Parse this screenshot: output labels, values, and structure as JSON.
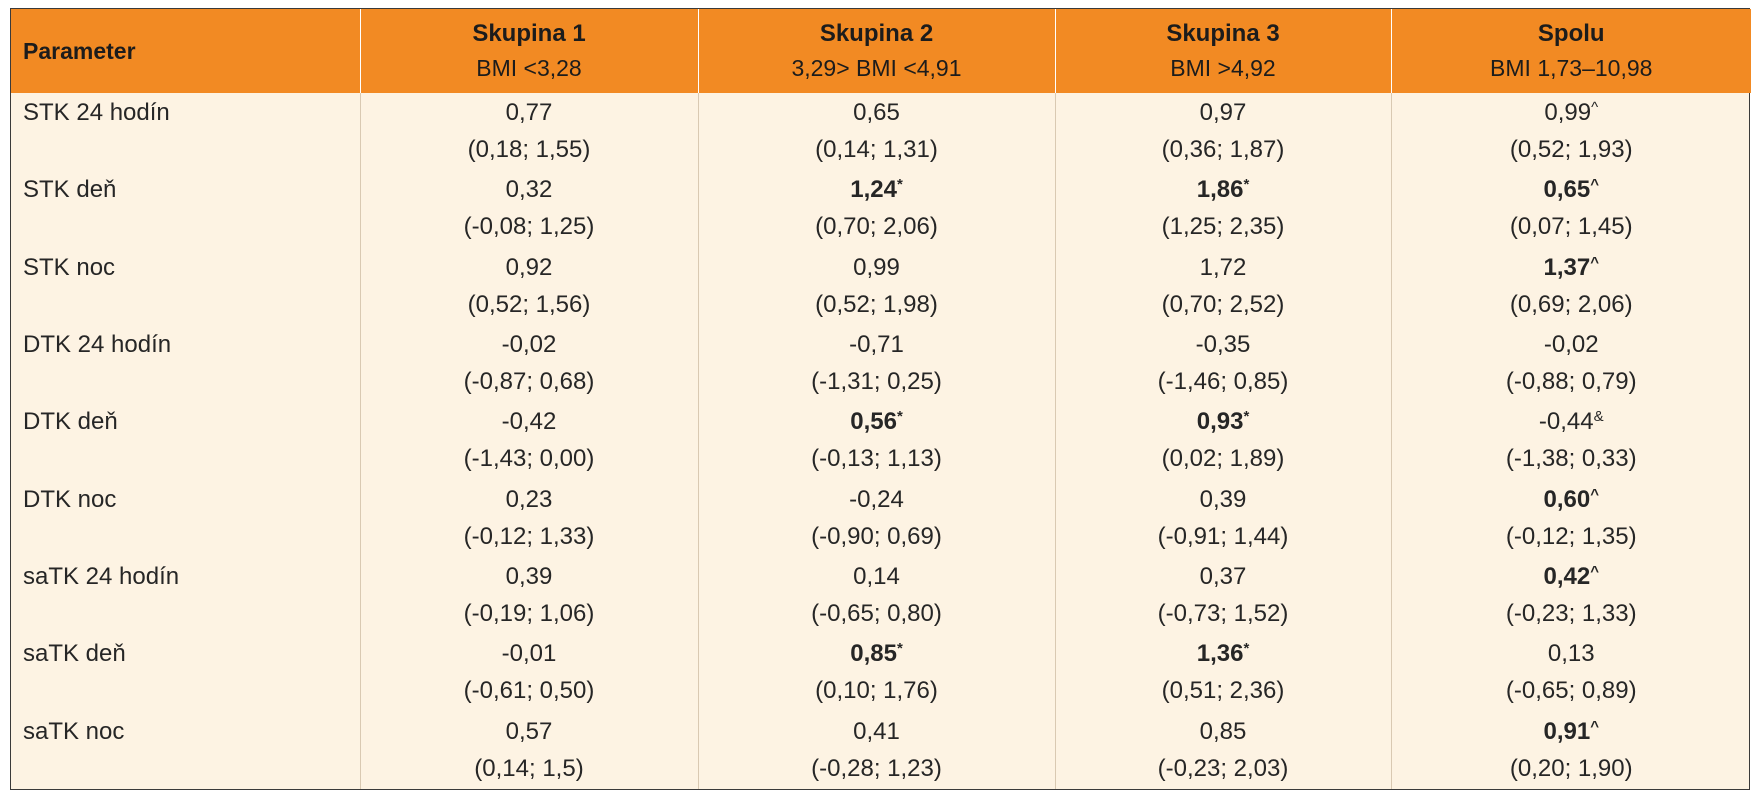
{
  "table": {
    "header": {
      "param": "Parameter",
      "groups": [
        {
          "title": "Skupina 1",
          "sub": "BMI <3,28"
        },
        {
          "title": "Skupina 2",
          "sub": "3,29> BMI <4,91"
        },
        {
          "title": "Skupina 3",
          "sub": "BMI >4,92"
        },
        {
          "title": "Spolu",
          "sub": "BMI 1,73–10,98"
        }
      ]
    },
    "rows": [
      {
        "label": "STK 24 hodín",
        "cells": [
          {
            "val": "0,77",
            "sup": "",
            "ci": "(0,18; 1,55)",
            "bold": false
          },
          {
            "val": "0,65",
            "sup": "",
            "ci": "(0,14; 1,31)",
            "bold": false
          },
          {
            "val": "0,97",
            "sup": "",
            "ci": "(0,36; 1,87)",
            "bold": false
          },
          {
            "val": "0,99",
            "sup": "^",
            "ci": "(0,52; 1,93)",
            "bold": false
          }
        ]
      },
      {
        "label": "STK deň",
        "cells": [
          {
            "val": "0,32",
            "sup": "",
            "ci": "(-0,08; 1,25)",
            "bold": false
          },
          {
            "val": "1,24",
            "sup": "*",
            "ci": "(0,70; 2,06)",
            "bold": true
          },
          {
            "val": "1,86",
            "sup": "*",
            "ci": "(1,25; 2,35)",
            "bold": true
          },
          {
            "val": "0,65",
            "sup": "^",
            "ci": "(0,07; 1,45)",
            "bold": true
          }
        ]
      },
      {
        "label": "STK noc",
        "cells": [
          {
            "val": "0,92",
            "sup": "",
            "ci": "(0,52; 1,56)",
            "bold": false
          },
          {
            "val": "0,99",
            "sup": "",
            "ci": "(0,52; 1,98)",
            "bold": false
          },
          {
            "val": "1,72",
            "sup": "",
            "ci": "(0,70; 2,52)",
            "bold": false
          },
          {
            "val": "1,37",
            "sup": "^",
            "ci": "(0,69; 2,06)",
            "bold": true
          }
        ]
      },
      {
        "label": "DTK 24 hodín",
        "cells": [
          {
            "val": "-0,02",
            "sup": "",
            "ci": "(-0,87; 0,68)",
            "bold": false
          },
          {
            "val": "-0,71",
            "sup": "",
            "ci": "(-1,31; 0,25)",
            "bold": false
          },
          {
            "val": "-0,35",
            "sup": "",
            "ci": "(-1,46; 0,85)",
            "bold": false
          },
          {
            "val": "-0,02",
            "sup": "",
            "ci": "(-0,88; 0,79)",
            "bold": false
          }
        ]
      },
      {
        "label": "DTK deň",
        "cells": [
          {
            "val": "-0,42",
            "sup": "",
            "ci": "(-1,43; 0,00)",
            "bold": false
          },
          {
            "val": "0,56",
            "sup": "*",
            "ci": "(-0,13; 1,13)",
            "bold": true
          },
          {
            "val": "0,93",
            "sup": "*",
            "ci": "(0,02; 1,89)",
            "bold": true
          },
          {
            "val": "-0,44",
            "sup": "&",
            "ci": "(-1,38; 0,33)",
            "bold": false
          }
        ]
      },
      {
        "label": "DTK noc",
        "cells": [
          {
            "val": "0,23",
            "sup": "",
            "ci": "(-0,12; 1,33)",
            "bold": false
          },
          {
            "val": "-0,24",
            "sup": "",
            "ci": "(-0,90; 0,69)",
            "bold": false
          },
          {
            "val": "0,39",
            "sup": "",
            "ci": "(-0,91; 1,44)",
            "bold": false
          },
          {
            "val": "0,60",
            "sup": "^",
            "ci": "(-0,12; 1,35)",
            "bold": true
          }
        ]
      },
      {
        "label": "saTK 24 hodín",
        "cells": [
          {
            "val": "0,39",
            "sup": "",
            "ci": "(-0,19; 1,06)",
            "bold": false
          },
          {
            "val": "0,14",
            "sup": "",
            "ci": "(-0,65; 0,80)",
            "bold": false
          },
          {
            "val": "0,37",
            "sup": "",
            "ci": "(-0,73; 1,52)",
            "bold": false
          },
          {
            "val": "0,42",
            "sup": "^",
            "ci": "(-0,23; 1,33)",
            "bold": true
          }
        ]
      },
      {
        "label": "saTK deň",
        "cells": [
          {
            "val": "-0,01",
            "sup": "",
            "ci": "(-0,61; 0,50)",
            "bold": false
          },
          {
            "val": "0,85",
            "sup": "*",
            "ci": "(0,10; 1,76)",
            "bold": true
          },
          {
            "val": "1,36",
            "sup": "*",
            "ci": "(0,51; 2,36)",
            "bold": true
          },
          {
            "val": "0,13",
            "sup": "",
            "ci": "(-0,65; 0,89)",
            "bold": false
          }
        ]
      },
      {
        "label": "saTK noc",
        "cells": [
          {
            "val": "0,57",
            "sup": "",
            "ci": "(0,14; 1,5)",
            "bold": false
          },
          {
            "val": "0,41",
            "sup": "",
            "ci": "(-0,28; 1,23)",
            "bold": false
          },
          {
            "val": "0,85",
            "sup": "",
            "ci": "(-0,23; 2,03)",
            "bold": false
          },
          {
            "val": "0,91",
            "sup": "^",
            "ci": "(0,20; 1,90)",
            "bold": true
          }
        ]
      }
    ]
  }
}
